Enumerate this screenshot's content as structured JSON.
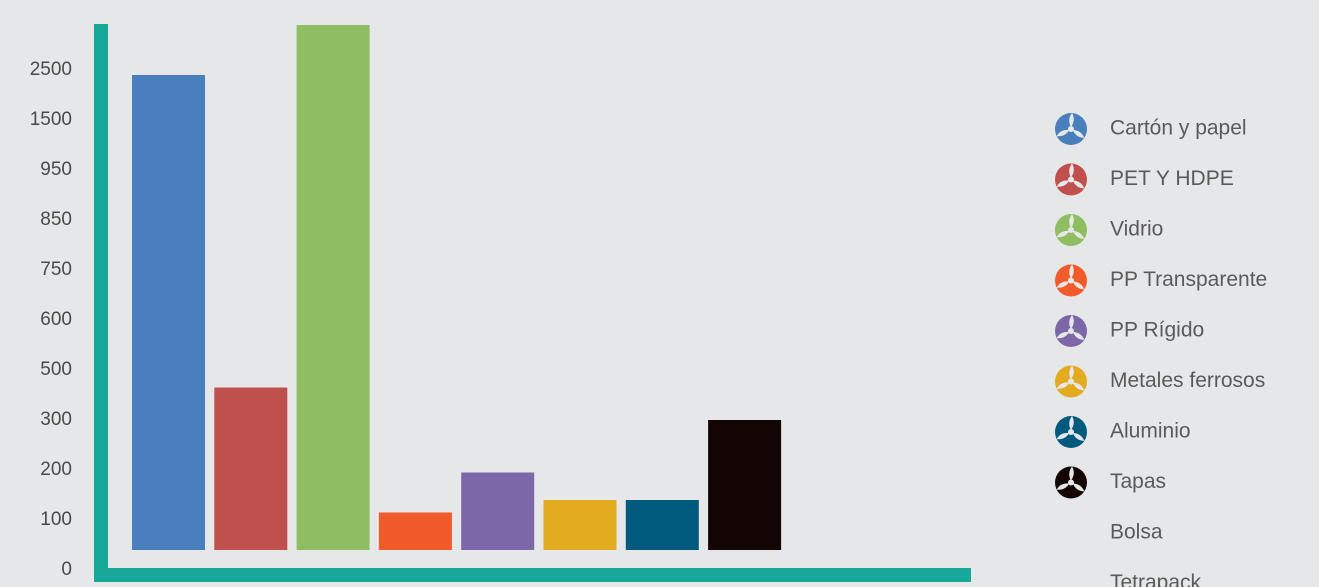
{
  "chart_data": {
    "type": "bar",
    "title": "",
    "xlabel": "",
    "ylabel": "",
    "y_tick_labels": [
      "0",
      "100",
      "200",
      "300",
      "500",
      "600",
      "750",
      "850",
      "950",
      "1500",
      "2500"
    ],
    "categories": [
      "Cartón y papel",
      "PET Y HDPE",
      "Vidrio",
      "PP Transparente",
      "PP Rígido",
      "Metales ferrosos",
      "Aluminio",
      "Tapas"
    ],
    "values": [
      2000,
      350,
      3000,
      75,
      155,
      100,
      100,
      260
    ],
    "colors": [
      "#4a7fbd",
      "#c0504d",
      "#8fbd62",
      "#f15a29",
      "#7c68a8",
      "#e3ac20",
      "#005a7e",
      "#150606"
    ],
    "grid": false,
    "legend_position": "right",
    "legend": [
      {
        "label": "Cartón y papel",
        "color": "#4a7fbd",
        "icon": "recycle-leaves-icon"
      },
      {
        "label": "PET Y HDPE",
        "color": "#c0504d",
        "icon": "recycle-leaves-icon"
      },
      {
        "label": "Vidrio",
        "color": "#8fbd62",
        "icon": "recycle-leaves-icon"
      },
      {
        "label": "PP Transparente",
        "color": "#f15a29",
        "icon": "recycle-leaves-icon"
      },
      {
        "label": "PP Rígido",
        "color": "#7c68a8",
        "icon": "recycle-leaves-icon"
      },
      {
        "label": "Metales ferrosos",
        "color": "#e3ac20",
        "icon": "recycle-leaves-icon"
      },
      {
        "label": "Aluminio",
        "color": "#005a7e",
        "icon": "recycle-leaves-icon"
      },
      {
        "label": "Tapas",
        "color": "#150606",
        "icon": "recycle-leaves-icon"
      },
      {
        "label": "Bolsa",
        "color": "",
        "icon": ""
      },
      {
        "label": "Tetrapack",
        "color": "",
        "icon": ""
      }
    ],
    "axis_color": "#17a89a"
  }
}
